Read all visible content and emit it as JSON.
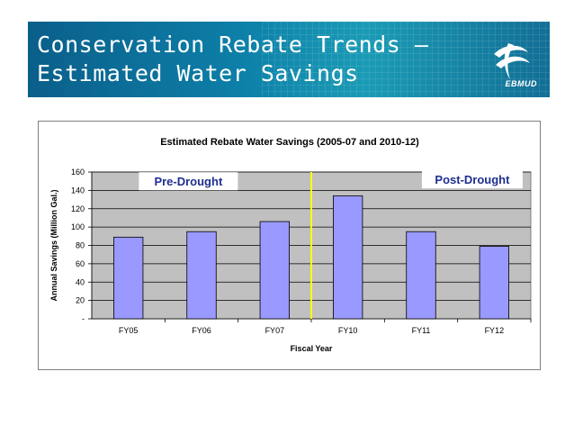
{
  "slide": {
    "title_line1": "Conservation Rebate Trends –",
    "title_line2": "Estimated Water Savings",
    "logo_text": "EBMUD"
  },
  "colors": {
    "bar_fill": "#9999ff",
    "plot_bg": "#c0c0c0",
    "divider": "#ffff00",
    "annotation_text": "#1f2f8f",
    "banner": "#0d7fa8"
  },
  "chart_data": {
    "type": "bar",
    "title": "Estimated Rebate Water Savings (2005-07 and 2010-12)",
    "xlabel": "Fiscal Year",
    "ylabel": "Annual Savings (Million Gal.)",
    "categories": [
      "FY05",
      "FY06",
      "FY07",
      "FY10",
      "FY11",
      "FY12"
    ],
    "values": [
      89,
      95,
      106,
      134,
      95,
      79
    ],
    "ylim": [
      0,
      160
    ],
    "yticks": [
      0,
      20,
      40,
      60,
      80,
      100,
      120,
      140,
      160
    ],
    "ytick_labels": [
      "-",
      "20",
      "40",
      "60",
      "80",
      "100",
      "120",
      "140",
      "160"
    ],
    "grid": true,
    "legend": "none",
    "annotations": [
      {
        "text": "Pre-Drought"
      },
      {
        "text": "Post-Drought"
      }
    ],
    "divider_between": [
      "FY07",
      "FY10"
    ]
  }
}
